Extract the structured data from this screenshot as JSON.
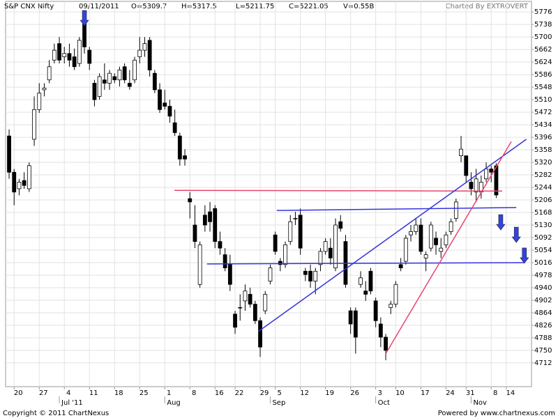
{
  "header": {
    "symbol": "S&P CNX Nifty",
    "date": "09/11/2011",
    "open": "O=5309.7",
    "high": "H=5317.5",
    "low": "L=5211.75",
    "close": "C=5221.05",
    "volume": "V=0.55B",
    "credit": "Charted By EXTROVERT"
  },
  "footer": {
    "copyright": "Copyright © 2011 ChartNexus",
    "powered": "Powered by www.chartnexus.com"
  },
  "chart_data": {
    "type": "candlestick",
    "grid": true,
    "up_color": "#ffffff",
    "down_color": "#000000",
    "ylim": [
      4640,
      5808
    ],
    "yticks": [
      4712,
      4750,
      4788,
      4826,
      4864,
      4902,
      4940,
      4978,
      5016,
      5054,
      5092,
      5130,
      5168,
      5206,
      5244,
      5282,
      5320,
      5358,
      5396,
      5434,
      5472,
      5510,
      5548,
      5586,
      5624,
      5662,
      5700,
      5738,
      5776
    ],
    "categories": [
      null,
      "20",
      null,
      null,
      null,
      null,
      "27",
      null,
      null,
      null,
      null,
      "4",
      null,
      null,
      null,
      null,
      "11",
      null,
      null,
      null,
      null,
      "18",
      null,
      null,
      null,
      null,
      "25",
      null,
      null,
      null,
      null,
      "1",
      null,
      null,
      null,
      null,
      "8",
      null,
      null,
      null,
      null,
      "16",
      null,
      null,
      null,
      "22",
      null,
      null,
      null,
      null,
      "29",
      null,
      null,
      "5",
      null,
      null,
      null,
      null,
      "12",
      null,
      null,
      null,
      null,
      "19",
      null,
      null,
      null,
      null,
      "26",
      null,
      null,
      null,
      null,
      "3",
      null,
      null,
      null,
      "10",
      null,
      null,
      null,
      null,
      "17",
      null,
      null,
      null,
      null,
      "24",
      null,
      null,
      null,
      "31",
      null,
      null,
      null,
      null,
      "8",
      null,
      null,
      "14",
      null,
      null,
      null,
      null
    ],
    "months": [
      {
        "label": "Jul '11",
        "category": 10
      },
      {
        "label": "Aug",
        "category": 31
      },
      {
        "label": "Sep",
        "category": 52
      },
      {
        "label": "Oct",
        "category": 73
      },
      {
        "label": "Nov",
        "category": 92
      }
    ],
    "open": [
      5400,
      5290,
      5240,
      5265,
      5240,
      5390,
      5480,
      5540,
      5570,
      5630,
      5680,
      5640,
      5650,
      5640,
      5620,
      5740,
      5660,
      5560,
      5520,
      5570,
      5560,
      5580,
      5570,
      5610,
      5560,
      5570,
      5640,
      5660,
      5690,
      5590,
      5540,
      5500,
      5490,
      5440,
      5400,
      5340,
      5210,
      5130,
      4950,
      5160,
      5170,
      5180,
      5080,
      5040,
      5010,
      4860,
      4880,
      4900,
      4920,
      4890,
      4840,
      4870,
      4960,
      5100,
      5020,
      5010,
      5080,
      5150,
      5160,
      4990,
      4990,
      4960,
      5010,
      5050,
      5060,
      5000,
      5140,
      5080,
      4870,
      4870,
      4950,
      4930,
      4990,
      4900,
      4830,
      4790,
      4880,
      4890,
      5010,
      5020,
      5100,
      5110,
      5130,
      5030,
      5060,
      5090,
      5050,
      5070,
      5110,
      5150,
      5340,
      5340,
      5260,
      5230,
      5230,
      5270,
      5300,
      5309.7,
      null,
      null,
      null,
      null,
      null,
      null
    ],
    "high": [
      5420,
      5300,
      5270,
      5290,
      5320,
      5520,
      5560,
      5560,
      5630,
      5680,
      5700,
      5670,
      5680,
      5665,
      5700,
      5750,
      5670,
      5570,
      5590,
      5620,
      5600,
      5590,
      5610,
      5620,
      5600,
      5640,
      5700,
      5700,
      5700,
      5600,
      5560,
      5540,
      5510,
      5480,
      5410,
      5360,
      5230,
      5190,
      5080,
      5190,
      5200,
      5190,
      5110,
      5060,
      5040,
      4870,
      4920,
      4950,
      4940,
      4900,
      4850,
      4930,
      5010,
      5110,
      5030,
      5080,
      5160,
      5170,
      5180,
      5000,
      5010,
      5000,
      5060,
      5090,
      5090,
      5150,
      5160,
      5100,
      4880,
      4880,
      4990,
      4960,
      5000,
      4910,
      4850,
      4800,
      4900,
      4960,
      5030,
      5100,
      5130,
      5150,
      5150,
      5050,
      5140,
      5110,
      5090,
      5110,
      5150,
      5210,
      5400,
      5340,
      5290,
      5300,
      5280,
      5320,
      5310,
      5317.5,
      null,
      null,
      null,
      null,
      null,
      null
    ],
    "low": [
      5270,
      5190,
      5220,
      5240,
      5230,
      5370,
      5470,
      5520,
      5560,
      5620,
      5620,
      5620,
      5610,
      5600,
      5610,
      5650,
      5600,
      5490,
      5510,
      5540,
      5540,
      5560,
      5550,
      5560,
      5540,
      5560,
      5620,
      5640,
      5580,
      5530,
      5470,
      5480,
      5440,
      5400,
      5310,
      5310,
      5150,
      5060,
      4940,
      5110,
      5110,
      5060,
      5040,
      4990,
      4930,
      4800,
      4840,
      4870,
      4880,
      4830,
      4730,
      4860,
      4950,
      5040,
      4990,
      5000,
      5070,
      5130,
      5040,
      4960,
      4940,
      4920,
      4990,
      5040,
      5010,
      4990,
      5110,
      4940,
      4800,
      4740,
      4940,
      4900,
      4920,
      4820,
      4760,
      4720,
      4860,
      4880,
      4990,
      5010,
      5080,
      5100,
      5040,
      4990,
      5050,
      5040,
      5030,
      5060,
      5100,
      5140,
      5320,
      5260,
      5220,
      5200,
      5210,
      5260,
      5260,
      5211.75,
      null,
      null,
      null,
      null,
      null,
      null
    ],
    "close": [
      5290,
      5230,
      5260,
      5250,
      5310,
      5480,
      5530,
      5545,
      5610,
      5660,
      5630,
      5650,
      5630,
      5610,
      5690,
      5670,
      5620,
      5510,
      5580,
      5560,
      5590,
      5570,
      5600,
      5570,
      5550,
      5630,
      5660,
      5680,
      5600,
      5540,
      5480,
      5490,
      5460,
      5410,
      5330,
      5330,
      5200,
      5080,
      5070,
      5130,
      5140,
      5080,
      5060,
      5000,
      4950,
      4820,
      4880,
      4930,
      4890,
      4840,
      4760,
      4920,
      5000,
      5050,
      5010,
      5070,
      5140,
      5150,
      5060,
      4980,
      4960,
      4990,
      5050,
      5080,
      5030,
      5130,
      5120,
      4950,
      4830,
      4790,
      4970,
      4920,
      4930,
      4840,
      4790,
      4750,
      4890,
      4950,
      5000,
      5090,
      5110,
      5130,
      5050,
      5040,
      5130,
      5070,
      5060,
      5100,
      5140,
      5200,
      5360,
      5280,
      5240,
      5270,
      5260,
      5300,
      5290,
      5221.05,
      null,
      null,
      null,
      null,
      null,
      null
    ],
    "lines": [
      {
        "color": "#e8456e",
        "x": [
          32.9,
          98.2
        ],
        "y": [
          5235,
          5233
        ]
      },
      {
        "color": "#3333dd",
        "x": [
          53.3,
          101
        ],
        "y": [
          5174,
          5183
        ]
      },
      {
        "color": "#3333dd",
        "x": [
          39.4,
          102.6
        ],
        "y": [
          5012,
          5016
        ]
      },
      {
        "color": "#3333dd",
        "x": [
          49.6,
          103
        ],
        "y": [
          4807,
          5390
        ]
      },
      {
        "color": "#e8456e",
        "x": [
          75,
          100
        ],
        "y": [
          4740,
          5383
        ]
      }
    ],
    "arrows": {
      "color": "#3344dd",
      "x": [
        15,
        97.9,
        101,
        102.6
      ],
      "y": [
        5734,
        5115,
        5077,
        5014
      ]
    }
  }
}
